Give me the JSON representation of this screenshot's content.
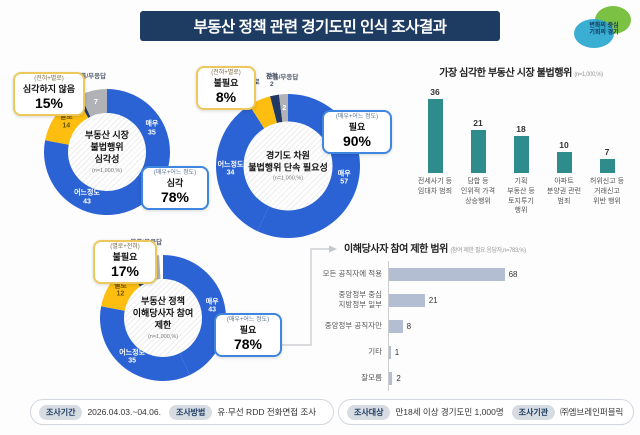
{
  "header": {
    "title": "부동산 정책 관련 경기도민 인식 조사결과"
  },
  "logo": {
    "line1": "변화의 중심",
    "line2": "기회의 경기"
  },
  "colors": {
    "banner_navy": "#1e3c61",
    "donut_blue": "#2c63d4",
    "donut_yellow": "#fdbe10",
    "donut_navy": "#1f3864",
    "donut_gray": "#b0b2b5",
    "vbar_teal": "#2f8c8d",
    "hbar_gray_blue": "#b4bed2",
    "callout_positive_border": "#3f86e0",
    "callout_negative_border": "#ecc85d"
  },
  "chart_data": [
    {
      "id": "market_illegal_severity",
      "type": "pie",
      "title": "부동산 시장 불법행위 심각성",
      "title_lines": [
        "부동산 시장",
        "불법행위",
        "심각성"
      ],
      "n_label": "(n=1,000,%)",
      "segments": [
        {
          "name": "매우",
          "value": 35,
          "color": "#2c63d4",
          "label": "inside"
        },
        {
          "name": "어느정도",
          "value": 43,
          "color": "#2c63d4",
          "label": "inside"
        },
        {
          "name": "별로",
          "value": 14,
          "color": "#fdbe10",
          "label": "inside"
        },
        {
          "name": "전혀",
          "value": 1,
          "color": "#1f3864",
          "label": "outside"
        },
        {
          "name": "모름/무응답",
          "value": 7,
          "color": "#b0b2b5",
          "label": "split"
        }
      ],
      "callouts": [
        {
          "subtitle": "(전혀+별로)",
          "label": "심각하지 않음",
          "percent": "15%",
          "tone": "negative"
        },
        {
          "subtitle": "(매우+어느 정도)",
          "label": "심각",
          "percent": "78%",
          "tone": "positive"
        }
      ]
    },
    {
      "id": "gyeonggi_crackdown_need",
      "type": "pie",
      "title": "경기도 차원 불법행위 단속 필요성",
      "title_lines": [
        "경기도 차원",
        "불법행위 단속 필요성"
      ],
      "n_label": "(n=1,000,%)",
      "segments": [
        {
          "name": "매우",
          "value": 57,
          "color": "#2c63d4",
          "label": "inside"
        },
        {
          "name": "어느정도",
          "value": 34,
          "color": "#2c63d4",
          "label": "inside"
        },
        {
          "name": "별로",
          "value": 5,
          "color": "#fdbe10",
          "label": "outside"
        },
        {
          "name": "전혀",
          "value": 2,
          "color": "#1f3864",
          "label": "outside"
        },
        {
          "name": "모름/무응답",
          "value": 2,
          "color": "#b0b2b5",
          "label": "split"
        }
      ],
      "callouts": [
        {
          "subtitle": "(전혀+별로)",
          "label": "불필요",
          "percent": "8%",
          "tone": "negative"
        },
        {
          "subtitle": "(매우+어느 정도)",
          "label": "필요",
          "percent": "90%",
          "tone": "positive"
        }
      ]
    },
    {
      "id": "stakeholder_restriction_need",
      "type": "pie",
      "title": "부동산 정책 이해당사자 참여 제한",
      "title_lines": [
        "부동산 정책",
        "이해당사자 참여",
        "제한"
      ],
      "n_label": "(n=1,000,%)",
      "segments": [
        {
          "name": "매우",
          "value": 43,
          "color": "#2c63d4",
          "label": "inside"
        },
        {
          "name": "어느정도",
          "value": 35,
          "color": "#2c63d4",
          "label": "inside"
        },
        {
          "name": "별로",
          "value": 12,
          "color": "#fdbe10",
          "label": "inside"
        },
        {
          "name": "전혀",
          "value": 4,
          "color": "#1f3864",
          "label": "outside"
        },
        {
          "name": "모름/무응답",
          "value": 5,
          "color": "#b0b2b5",
          "label": "split"
        }
      ],
      "callouts": [
        {
          "subtitle": "(별로+전혀)",
          "label": "불필요",
          "percent": "17%",
          "tone": "negative"
        },
        {
          "subtitle": "(매우+어느 정도)",
          "label": "필요",
          "percent": "78%",
          "tone": "positive"
        }
      ]
    },
    {
      "id": "worst_illegal_acts",
      "type": "bar",
      "title": "가장 심각한 부동산 시장 불법행위",
      "n_label": "(n=1,000,%)",
      "categories": [
        "전세사기 등\n임대차 범죄",
        "담합 등\n인위적 가격\n상승행위",
        "기획\n부동산 등\n토지투기\n행위",
        "아파트\n분양권 관련\n범죄",
        "허위신고 등\n거래신고\n위반 행위"
      ],
      "values": [
        36,
        21,
        18,
        10,
        7
      ],
      "bar_color": "#2f8c8d",
      "ylim": [
        0,
        40
      ]
    },
    {
      "id": "restriction_scope",
      "type": "bar_h",
      "title": "이해당사자 참여 제한 범위",
      "n_label": "(참여 제한 필요 응답자,n=783,%)",
      "categories": [
        "모든 공직자에 적용",
        "중앙정부 중심\n지방정부 일부",
        "중앙정부 공직자만",
        "기타",
        "잘모름"
      ],
      "values": [
        68,
        21,
        8,
        1,
        2
      ],
      "bar_color": "#b4bed2",
      "xlim": [
        0,
        80
      ]
    }
  ],
  "footer": {
    "items": [
      {
        "label": "조사기간",
        "value": "2026.04.03.~04.06."
      },
      {
        "label": "조사방법",
        "value": "유·무선 RDD 전화면접 조사"
      },
      {
        "label": "조사대상",
        "value": "만18세 이상 경기도민 1,000명"
      },
      {
        "label": "조사기관",
        "value": "㈜엠브레인퍼블릭"
      }
    ]
  }
}
